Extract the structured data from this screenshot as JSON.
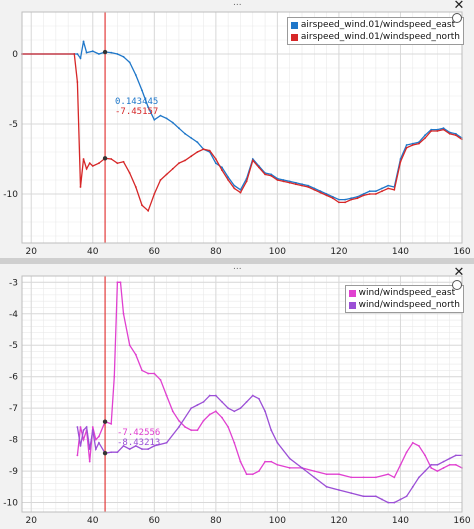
{
  "colors": {
    "airspeed_east": "#1f77c9",
    "airspeed_north": "#d62728",
    "wind_east": "#e040d0",
    "wind_north": "#9b4fd6",
    "cursor": "#e33a3a",
    "grid_major": "#d8d8d8",
    "grid_minor": "#e9e9e9",
    "background": "#ffffff"
  },
  "icons": {
    "close": "close-icon",
    "reset": "circle-icon"
  },
  "toolbar": {
    "grip_top": "...",
    "grip_bottom": "..."
  },
  "cursor_x": 44,
  "chart_data": [
    {
      "type": "line",
      "xlim": [
        17,
        160
      ],
      "ylim": [
        -13.5,
        3
      ],
      "x_ticks": [
        20,
        40,
        60,
        80,
        100,
        120,
        140,
        160
      ],
      "y_ticks": [
        0,
        -5,
        -10
      ],
      "x_tick_labels": [
        "20",
        "40",
        "60",
        "80",
        "100",
        "120",
        "140",
        "160"
      ],
      "y_tick_labels": [
        "0",
        "-5",
        "-10"
      ],
      "grid": true,
      "legend": "top-right",
      "readouts": [
        "0.143445",
        "-7.45157"
      ],
      "series": [
        {
          "name": "airspeed_wind.01/windspeed_east",
          "color": "#1f77c9",
          "x": [
            17,
            34,
            35,
            36,
            37,
            38,
            40,
            42,
            44,
            46,
            48,
            50,
            52,
            54,
            56,
            58,
            60,
            62,
            64,
            66,
            68,
            70,
            72,
            74,
            76,
            78,
            80,
            82,
            84,
            86,
            88,
            90,
            92,
            94,
            96,
            98,
            100,
            102,
            104,
            106,
            108,
            110,
            112,
            114,
            116,
            118,
            120,
            122,
            124,
            126,
            128,
            130,
            132,
            134,
            136,
            138,
            140,
            142,
            144,
            146,
            148,
            150,
            152,
            154,
            156,
            158,
            160
          ],
          "y": [
            0,
            0,
            0,
            -0.3,
            0.9,
            0.1,
            0.2,
            0.0,
            0.14,
            0.1,
            0.0,
            -0.2,
            -0.6,
            -1.5,
            -2.6,
            -3.8,
            -4.7,
            -4.4,
            -4.6,
            -4.9,
            -5.3,
            -5.7,
            -6.0,
            -6.3,
            -6.8,
            -7.0,
            -7.8,
            -8.1,
            -8.8,
            -9.4,
            -9.7,
            -8.9,
            -7.5,
            -8.0,
            -8.5,
            -8.6,
            -8.9,
            -9.0,
            -9.1,
            -9.2,
            -9.3,
            -9.4,
            -9.6,
            -9.8,
            -10.0,
            -10.2,
            -10.4,
            -10.4,
            -10.3,
            -10.2,
            -10.0,
            -9.8,
            -9.8,
            -9.6,
            -9.4,
            -9.5,
            -7.5,
            -6.5,
            -6.4,
            -6.3,
            -5.8,
            -5.4,
            -5.4,
            -5.3,
            -5.6,
            -5.7,
            -6.0
          ]
        },
        {
          "name": "airspeed_wind.01/windspeed_north",
          "color": "#d62728",
          "x": [
            17,
            34,
            35,
            36,
            37,
            38,
            39,
            40,
            42,
            44,
            46,
            48,
            50,
            52,
            54,
            56,
            58,
            60,
            62,
            64,
            66,
            68,
            70,
            72,
            74,
            76,
            78,
            80,
            82,
            84,
            86,
            88,
            90,
            92,
            94,
            96,
            98,
            100,
            102,
            104,
            106,
            108,
            110,
            112,
            114,
            116,
            118,
            120,
            122,
            124,
            126,
            128,
            130,
            132,
            134,
            136,
            138,
            140,
            142,
            144,
            146,
            148,
            150,
            152,
            154,
            156,
            158,
            160
          ],
          "y": [
            0,
            0,
            -2.0,
            -9.5,
            -7.5,
            -8.2,
            -7.8,
            -8.0,
            -7.8,
            -7.45,
            -7.5,
            -7.8,
            -7.7,
            -8.5,
            -9.5,
            -10.8,
            -11.2,
            -10.0,
            -9.0,
            -8.6,
            -8.2,
            -7.8,
            -7.6,
            -7.3,
            -7.0,
            -6.8,
            -6.9,
            -7.5,
            -8.3,
            -9.0,
            -9.6,
            -9.9,
            -9.1,
            -7.6,
            -8.1,
            -8.6,
            -8.7,
            -9.0,
            -9.1,
            -9.2,
            -9.3,
            -9.4,
            -9.5,
            -9.7,
            -9.9,
            -10.1,
            -10.3,
            -10.6,
            -10.6,
            -10.4,
            -10.3,
            -10.1,
            -10.0,
            -10.0,
            -9.8,
            -9.6,
            -9.7,
            -7.7,
            -6.7,
            -6.5,
            -6.4,
            -6.0,
            -5.5,
            -5.5,
            -5.4,
            -5.7,
            -5.8,
            -6.1
          ]
        }
      ]
    },
    {
      "type": "line",
      "xlim": [
        17,
        160
      ],
      "ylim": [
        -10.3,
        -2.8
      ],
      "x_ticks": [
        20,
        40,
        60,
        80,
        100,
        120,
        140,
        160
      ],
      "y_ticks": [
        -3,
        -4,
        -5,
        -6,
        -7,
        -8,
        -9,
        -10
      ],
      "x_tick_labels": [
        "20",
        "40",
        "60",
        "80",
        "100",
        "120",
        "140",
        "160"
      ],
      "y_tick_labels": [
        "-3",
        "-4",
        "-5",
        "-6",
        "-7",
        "-8",
        "-9",
        "-10"
      ],
      "grid": true,
      "legend": "top-right",
      "readouts": [
        "-7.42556",
        "-8.43213"
      ],
      "series": [
        {
          "name": "wind/windspeed_east",
          "color": "#e040d0",
          "x": [
            35,
            36,
            37,
            38,
            39,
            40,
            41,
            42,
            44,
            46,
            47,
            48,
            49,
            50,
            52,
            54,
            56,
            58,
            60,
            62,
            64,
            66,
            68,
            70,
            72,
            74,
            76,
            78,
            80,
            82,
            84,
            86,
            88,
            90,
            92,
            94,
            96,
            98,
            100,
            104,
            108,
            112,
            116,
            120,
            124,
            128,
            132,
            136,
            138,
            140,
            142,
            144,
            146,
            148,
            150,
            152,
            154,
            156,
            158,
            160
          ],
          "y": [
            -8.5,
            -7.6,
            -8.0,
            -7.7,
            -8.7,
            -7.6,
            -8.0,
            -7.9,
            -7.43,
            -7.5,
            -6.0,
            -3.0,
            -3.0,
            -4.0,
            -5.0,
            -5.3,
            -5.8,
            -5.9,
            -5.9,
            -6.1,
            -6.6,
            -7.1,
            -7.4,
            -7.6,
            -7.7,
            -7.7,
            -7.4,
            -7.2,
            -7.1,
            -7.3,
            -7.6,
            -8.1,
            -8.7,
            -9.1,
            -9.1,
            -9.0,
            -8.7,
            -8.7,
            -8.8,
            -8.9,
            -8.9,
            -9.0,
            -9.1,
            -9.1,
            -9.2,
            -9.2,
            -9.2,
            -9.1,
            -9.2,
            -8.8,
            -8.4,
            -8.1,
            -8.2,
            -8.5,
            -8.9,
            -9.0,
            -8.9,
            -8.8,
            -8.8,
            -8.9
          ]
        },
        {
          "name": "wind/windspeed_north",
          "color": "#9b4fd6",
          "x": [
            35,
            36,
            37,
            38,
            39,
            40,
            41,
            42,
            44,
            46,
            48,
            50,
            52,
            54,
            56,
            58,
            60,
            64,
            68,
            72,
            74,
            76,
            78,
            80,
            82,
            84,
            86,
            88,
            90,
            92,
            94,
            96,
            98,
            100,
            104,
            108,
            112,
            116,
            120,
            124,
            128,
            132,
            134,
            136,
            138,
            140,
            142,
            144,
            146,
            148,
            150,
            152,
            154,
            156,
            158,
            160
          ],
          "y": [
            -7.6,
            -8.2,
            -7.7,
            -7.6,
            -8.3,
            -7.7,
            -8.3,
            -8.1,
            -8.43,
            -8.4,
            -8.4,
            -8.2,
            -8.3,
            -8.2,
            -8.3,
            -8.3,
            -8.2,
            -8.1,
            -7.6,
            -7.0,
            -6.9,
            -6.8,
            -6.6,
            -6.6,
            -6.8,
            -7.0,
            -7.1,
            -7.0,
            -6.8,
            -6.6,
            -6.7,
            -7.1,
            -7.7,
            -8.1,
            -8.6,
            -8.9,
            -9.2,
            -9.5,
            -9.6,
            -9.7,
            -9.8,
            -9.8,
            -9.9,
            -10.0,
            -10.0,
            -9.9,
            -9.8,
            -9.5,
            -9.2,
            -9.0,
            -8.8,
            -8.8,
            -8.7,
            -8.6,
            -8.5,
            -8.5
          ]
        }
      ]
    }
  ]
}
